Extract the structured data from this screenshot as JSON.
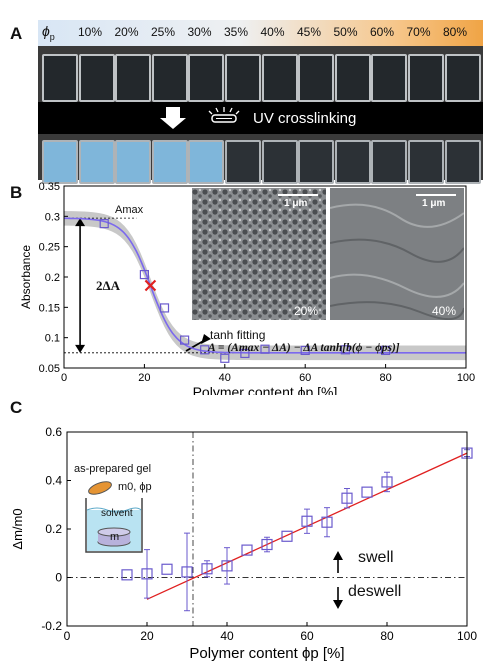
{
  "panels": {
    "a": {
      "letter": "A",
      "phi_symbol": "ϕ",
      "phi_sub": "p",
      "percentages": [
        "10%",
        "20%",
        "25%",
        "30%",
        "35%",
        "40%",
        "45%",
        "50%",
        "60%",
        "70%",
        "80%"
      ],
      "uv_label": "UV crosslinking"
    },
    "b": {
      "letter": "B",
      "ylabel": "Absorbance",
      "xlabel": "Polymer content ϕp [%]",
      "amax_label": "Amax",
      "two_delta_label": "2ΔA",
      "tanh_label": "tanh fitting",
      "formula": "A = (Amax − ΔA) − ΔA tanh[b(ϕ − ϕps)]",
      "sem_left": {
        "scale": "1 μm",
        "tag": "20%"
      },
      "sem_right": {
        "scale": "1 μm",
        "tag": "40%"
      }
    },
    "c": {
      "letter": "C",
      "ylabel": "Δm/m0",
      "xlabel": "Polymer content ϕp [%]",
      "inset_gel": "as-prepared gel",
      "inset_mass": "m0, ϕp",
      "inset_solvent": "solvent",
      "inset_m": "m",
      "swell": "swell",
      "deswell": "deswell"
    }
  },
  "colors": {
    "marker": "#6a5acd",
    "fit_line": "#7b68ee",
    "band": "#c8c8c8",
    "red_line": "#e02020",
    "red_cross": "#e02020",
    "photo_blue": "#7fb6da"
  },
  "chart_data": [
    {
      "type": "scatter",
      "title": "",
      "xlabel": "Polymer content ϕp [%]",
      "ylabel": "Absorbance",
      "xlim": [
        0,
        100
      ],
      "ylim": [
        0.05,
        0.35
      ],
      "xticks": [
        0,
        20,
        40,
        60,
        80,
        100
      ],
      "yticks": [
        0.05,
        0.1,
        0.15,
        0.2,
        0.25,
        0.3,
        0.35
      ],
      "series": [
        {
          "values_x": [
            10,
            20,
            25,
            30,
            35,
            40,
            45,
            50,
            60,
            70,
            80
          ],
          "values_y": [
            0.288,
            0.204,
            0.149,
            0.096,
            0.08,
            0.066,
            0.074,
            0.081,
            0.079,
            0.08,
            0.079
          ]
        }
      ],
      "fit": {
        "A_max": 0.297,
        "delta_A": 0.111,
        "b": 0.16,
        "phi_ps": 21.5,
        "band_halfwidth": 0.012
      },
      "inflection": {
        "x": 21.5,
        "y": 0.186
      }
    },
    {
      "type": "scatter",
      "title": "",
      "xlabel": "Polymer content ϕp [%]",
      "ylabel": "Δm/m0",
      "xlim": [
        0,
        100
      ],
      "ylim": [
        -0.2,
        0.6
      ],
      "xticks": [
        0,
        20,
        40,
        60,
        80,
        100
      ],
      "yticks": [
        -0.2,
        0,
        0.2,
        0.4,
        0.6
      ],
      "series": [
        {
          "values_x": [
            15,
            20,
            25,
            30,
            35,
            40,
            45,
            50,
            55,
            60,
            65,
            70,
            75,
            80,
            100
          ],
          "values_y": [
            0.011,
            0.015,
            0.034,
            0.023,
            0.036,
            0.048,
            0.113,
            0.136,
            0.17,
            0.232,
            0.228,
            0.327,
            0.352,
            0.394,
            0.513
          ],
          "errors": [
            0,
            0.1,
            0,
            0.16,
            0.033,
            0.075,
            0,
            0.03,
            0,
            0.05,
            0.06,
            0.04,
            0,
            0.04,
            0.014
          ]
        }
      ],
      "linear_fit": {
        "x0": 20,
        "y0": -0.09,
        "x1": 100,
        "y1": 0.513
      },
      "hline_y": 0,
      "vline_x": 31.5
    }
  ]
}
